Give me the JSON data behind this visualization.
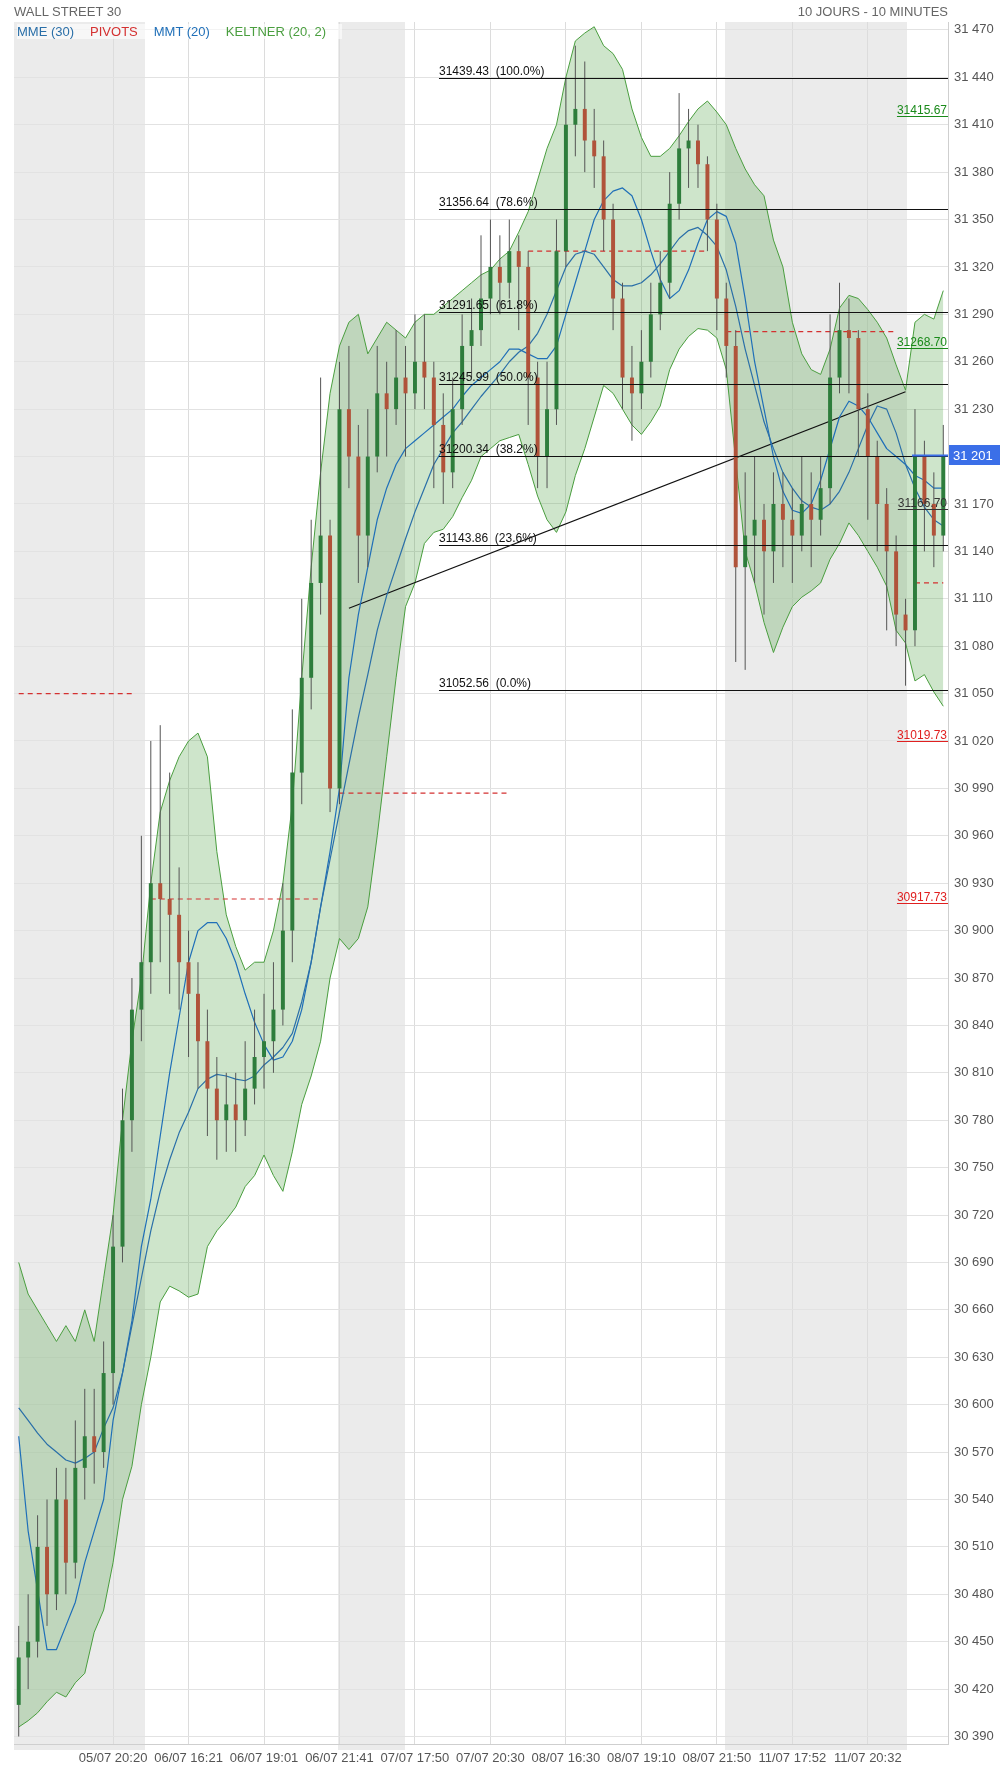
{
  "chart_data": {
    "type": "candlestick",
    "title": "WALL STREET 30",
    "subtitle": "10 JOURS - 10 MINUTES",
    "legend": "top left",
    "grid": true,
    "categories": [
      null,
      null,
      null,
      null,
      null,
      null,
      null,
      null,
      null,
      null,
      "05/07 20:20",
      null,
      null,
      null,
      null,
      null,
      null,
      null,
      "06/07 16:21",
      null,
      null,
      null,
      null,
      null,
      null,
      null,
      "06/07 19:01",
      null,
      null,
      null,
      null,
      null,
      null,
      null,
      "06/07 21:41",
      null,
      null,
      null,
      null,
      null,
      null,
      null,
      "07/07 17:50",
      null,
      null,
      null,
      null,
      null,
      null,
      null,
      "07/07 20:30",
      null,
      null,
      null,
      null,
      null,
      null,
      null,
      "08/07 16:30",
      null,
      null,
      null,
      null,
      null,
      null,
      null,
      "08/07 19:10",
      null,
      null,
      null,
      null,
      null,
      null,
      null,
      "08/07 21:50",
      null,
      null,
      null,
      null,
      null,
      null,
      null,
      "11/07 17:52",
      null,
      null,
      null,
      null,
      null,
      null,
      null,
      "11/07 20:32",
      null,
      null,
      null,
      null,
      null,
      null,
      null,
      null
    ],
    "ohlc": [
      [
        30410,
        30460,
        30390,
        30440
      ],
      [
        30440,
        30480,
        30420,
        30450
      ],
      [
        30450,
        30530,
        30440,
        30510
      ],
      [
        30510,
        30540,
        30460,
        30480
      ],
      [
        30480,
        30560,
        30470,
        30540
      ],
      [
        30540,
        30560,
        30480,
        30500
      ],
      [
        30500,
        30590,
        30490,
        30560
      ],
      [
        30560,
        30610,
        30540,
        30580
      ],
      [
        30580,
        30610,
        30550,
        30570
      ],
      [
        30570,
        30640,
        30560,
        30620
      ],
      [
        30620,
        30720,
        30600,
        30700
      ],
      [
        30700,
        30800,
        30690,
        30780
      ],
      [
        30780,
        30870,
        30760,
        30850
      ],
      [
        30850,
        30960,
        30830,
        30880
      ],
      [
        30880,
        31020,
        30860,
        30930
      ],
      [
        30930,
        31030,
        30880,
        30920
      ],
      [
        30920,
        31000,
        30860,
        30910
      ],
      [
        30910,
        30940,
        30850,
        30880
      ],
      [
        30880,
        30900,
        30820,
        30860
      ],
      [
        30860,
        30880,
        30800,
        30830
      ],
      [
        30830,
        30850,
        30770,
        30800
      ],
      [
        30800,
        30820,
        30755,
        30780
      ],
      [
        30780,
        30810,
        30760,
        30790
      ],
      [
        30790,
        30810,
        30760,
        30780
      ],
      [
        30780,
        30830,
        30770,
        30800
      ],
      [
        30800,
        30850,
        30790,
        30820
      ],
      [
        30820,
        30860,
        30800,
        30830
      ],
      [
        30830,
        30880,
        30810,
        30850
      ],
      [
        30850,
        30930,
        30840,
        30900
      ],
      [
        30900,
        31040,
        30880,
        31000
      ],
      [
        31000,
        31110,
        30980,
        31060
      ],
      [
        31060,
        31160,
        31040,
        31120
      ],
      [
        31120,
        31250,
        31100,
        31150
      ],
      [
        31150,
        31160,
        30975,
        30990
      ],
      [
        30990,
        31260,
        30980,
        31230
      ],
      [
        31230,
        31270,
        31180,
        31200
      ],
      [
        31200,
        31220,
        31120,
        31150
      ],
      [
        31150,
        31230,
        31130,
        31200
      ],
      [
        31200,
        31270,
        31190,
        31240
      ],
      [
        31240,
        31260,
        31200,
        31230
      ],
      [
        31230,
        31280,
        31220,
        31250
      ],
      [
        31250,
        31270,
        31200,
        31240
      ],
      [
        31240,
        31290,
        31230,
        31260
      ],
      [
        31260,
        31290,
        31230,
        31250
      ],
      [
        31250,
        31260,
        31180,
        31220
      ],
      [
        31220,
        31240,
        31170,
        31190
      ],
      [
        31190,
        31250,
        31180,
        31230
      ],
      [
        31230,
        31290,
        31220,
        31270
      ],
      [
        31270,
        31300,
        31250,
        31280
      ],
      [
        31280,
        31340,
        31270,
        31300
      ],
      [
        31300,
        31350,
        31290,
        31320
      ],
      [
        31320,
        31340,
        31290,
        31310
      ],
      [
        31310,
        31350,
        31300,
        31330
      ],
      [
        31330,
        31340,
        31280,
        31320
      ],
      [
        31320,
        31330,
        31220,
        31250
      ],
      [
        31250,
        31260,
        31180,
        31200
      ],
      [
        31200,
        31260,
        31180,
        31230
      ],
      [
        31230,
        31350,
        31220,
        31330
      ],
      [
        31330,
        31440,
        31320,
        31410
      ],
      [
        31410,
        31460,
        31390,
        31420
      ],
      [
        31420,
        31450,
        31380,
        31400
      ],
      [
        31400,
        31420,
        31370,
        31390
      ],
      [
        31390,
        31400,
        31330,
        31350
      ],
      [
        31350,
        31360,
        31280,
        31300
      ],
      [
        31300,
        31310,
        31230,
        31250
      ],
      [
        31250,
        31270,
        31210,
        31240
      ],
      [
        31240,
        31280,
        31230,
        31260
      ],
      [
        31260,
        31310,
        31250,
        31290
      ],
      [
        31290,
        31330,
        31280,
        31310
      ],
      [
        31310,
        31380,
        31300,
        31360
      ],
      [
        31360,
        31430,
        31350,
        31395
      ],
      [
        31395,
        31420,
        31370,
        31400
      ],
      [
        31400,
        31410,
        31370,
        31385
      ],
      [
        31385,
        31390,
        31330,
        31350
      ],
      [
        31350,
        31360,
        31280,
        31300
      ],
      [
        31300,
        31310,
        31250,
        31270
      ],
      [
        31270,
        31280,
        31070,
        31130
      ],
      [
        31130,
        31190,
        31065,
        31150
      ],
      [
        31150,
        31200,
        31120,
        31160
      ],
      [
        31160,
        31170,
        31100,
        31140
      ],
      [
        31140,
        31190,
        31120,
        31170
      ],
      [
        31170,
        31190,
        31130,
        31160
      ],
      [
        31160,
        31180,
        31120,
        31150
      ],
      [
        31150,
        31200,
        31140,
        31170
      ],
      [
        31170,
        31190,
        31130,
        31160
      ],
      [
        31160,
        31200,
        31150,
        31180
      ],
      [
        31180,
        31290,
        31170,
        31250
      ],
      [
        31250,
        31310,
        31240,
        31280
      ],
      [
        31280,
        31300,
        31240,
        31275
      ],
      [
        31275,
        31280,
        31200,
        31230
      ],
      [
        31230,
        31240,
        31160,
        31200
      ],
      [
        31200,
        31210,
        31140,
        31170
      ],
      [
        31170,
        31180,
        31090,
        31140
      ],
      [
        31140,
        31150,
        31080,
        31100
      ],
      [
        31100,
        31110,
        31055,
        31090
      ],
      [
        31090,
        31230,
        31080,
        31200
      ],
      [
        31200,
        31210,
        31140,
        31170
      ],
      [
        31170,
        31190,
        31130,
        31150
      ],
      [
        31150,
        31220,
        31140,
        31201
      ]
    ],
    "colors": [
      "#2e7d3c",
      "#2e7d3c",
      "#2e7d3c",
      "#b0533a",
      "#2e7d3c",
      "#b0533a",
      "#2e7d3c",
      "#2e7d3c",
      "#b0533a",
      "#2e7d3c",
      "#2e7d3c",
      "#2e7d3c",
      "#2e7d3c",
      "#2e7d3c",
      "#2e7d3c",
      "#b0533a",
      "#b0533a",
      "#b0533a",
      "#b0533a",
      "#b0533a",
      "#b0533a",
      "#b0533a",
      "#2e7d3c",
      "#b0533a",
      "#2e7d3c",
      "#2e7d3c",
      "#2e7d3c",
      "#2e7d3c",
      "#2e7d3c",
      "#2e7d3c",
      "#2e7d3c",
      "#2e7d3c",
      "#2e7d3c",
      "#b0533a",
      "#2e7d3c",
      "#b0533a",
      "#b0533a",
      "#2e7d3c",
      "#2e7d3c",
      "#b0533a",
      "#2e7d3c",
      "#b0533a",
      "#2e7d3c",
      "#b0533a",
      "#b0533a",
      "#b0533a",
      "#2e7d3c",
      "#2e7d3c",
      "#2e7d3c",
      "#2e7d3c",
      "#2e7d3c",
      "#b0533a",
      "#2e7d3c",
      "#b0533a",
      "#b0533a",
      "#b0533a",
      "#2e7d3c",
      "#2e7d3c",
      "#2e7d3c",
      "#2e7d3c",
      "#b0533a",
      "#b0533a",
      "#b0533a",
      "#b0533a",
      "#b0533a",
      "#b0533a",
      "#2e7d3c",
      "#2e7d3c",
      "#2e7d3c",
      "#2e7d3c",
      "#2e7d3c",
      "#2e7d3c",
      "#b0533a",
      "#b0533a",
      "#b0533a",
      "#b0533a",
      "#b0533a",
      "#2e7d3c",
      "#2e7d3c",
      "#b0533a",
      "#2e7d3c",
      "#b0533a",
      "#b0533a",
      "#2e7d3c",
      "#b0533a",
      "#2e7d3c",
      "#2e7d3c",
      "#2e7d3c",
      "#b0533a",
      "#b0533a",
      "#b0533a",
      "#b0533a",
      "#b0533a",
      "#b0533a",
      "#b0533a",
      "#2e7d3c",
      "#b0533a",
      "#b0533a",
      "#2e7d3c"
    ],
    "series": [
      {
        "name": "MME (30)",
        "type": "line",
        "color": "#2a6fa8",
        "values": [
          30598,
          30590,
          30582,
          30575,
          30570,
          30565,
          30563,
          30566,
          30570,
          30585,
          30598,
          30620,
          30650,
          30680,
          30710,
          30735,
          30755,
          30772,
          30785,
          30800,
          30806,
          30809,
          30808,
          30806,
          30805,
          30808,
          30815,
          30820,
          30826,
          30835,
          30855,
          30880,
          30915,
          30945,
          30975,
          31005,
          31035,
          31062,
          31090,
          31112,
          31130,
          31148,
          31165,
          31180,
          31195,
          31205,
          31215,
          31222,
          31230,
          31238,
          31245,
          31252,
          31260,
          31266,
          31270,
          31278,
          31290,
          null,
          31320,
          31328,
          31330,
          31328,
          31320,
          31312,
          31308,
          31308,
          31310,
          31315,
          31322,
          31330,
          31338,
          31343,
          31345,
          31340,
          31333,
          31318,
          31295,
          31268,
          31245,
          31222,
          31205,
          31190,
          31180,
          31172,
          31168,
          31166,
          31170,
          31178,
          31190,
          31205,
          31220,
          31232,
          31230,
          31215,
          31195,
          31180,
          31168,
          31160,
          31156
        ]
      },
      {
        "name": "PIVOTS",
        "type": "line",
        "line_style": "dashed",
        "color": "#d43030",
        "values": [
          31050,
          31050,
          31050,
          31050,
          31050,
          31050,
          31050,
          31050,
          31050,
          31050,
          31050,
          31050,
          31050,
          null,
          30920,
          30920,
          30920,
          30920,
          30920,
          30920,
          30920,
          30920,
          30920,
          30920,
          30920,
          30920,
          30920,
          30920,
          30920,
          30920,
          30920,
          30920,
          30920,
          null,
          30987,
          30987,
          30987,
          30987,
          30987,
          30987,
          30987,
          30987,
          30987,
          30987,
          30987,
          30987,
          30987,
          30987,
          30987,
          30987,
          30987,
          30987,
          30987,
          null,
          31330,
          31330,
          31330,
          31330,
          31330,
          31330,
          31330,
          31330,
          31330,
          31330,
          31330,
          31330,
          31330,
          31330,
          31330,
          31330,
          31330,
          31330,
          31330,
          31330,
          null,
          31279,
          31279,
          31279,
          31279,
          31279,
          31279,
          31279,
          31279,
          31279,
          31279,
          31279,
          31279,
          31279,
          31279,
          31279,
          31279,
          31279,
          31279,
          31279,
          null,
          31120,
          31120,
          31120,
          31120
        ]
      },
      {
        "name": "MMT (20)",
        "type": "line",
        "color": "#1f6fb8",
        "values": [
          30580,
          30520,
          null,
          30445,
          30445,
          30460,
          30475,
          30500,
          30520,
          30540,
          30590,
          30620,
          30653,
          30700,
          30730,
          30770,
          30810,
          30845,
          30880,
          30900,
          30905,
          30905,
          30895,
          30880,
          30860,
          30842,
          30828,
          30818,
          30820,
          30830,
          30850,
          30880,
          30915,
          30950,
          30990,
          31060,
          31100,
          31130,
          31160,
          31180,
          31195,
          31205,
          31210,
          31215,
          31220,
          31225,
          31230,
          31238,
          31245,
          31250,
          31255,
          31260,
          31268,
          31268,
          31265,
          31262,
          31262,
          31270,
          31290,
          31310,
          31330,
          31350,
          31362,
          31368,
          31370,
          31365,
          31350,
          31330,
          31312,
          31300,
          31305,
          31318,
          31335,
          31350,
          31355,
          31352,
          31335,
          31300,
          31260,
          31230,
          31200,
          31178,
          31166,
          31164,
          31170,
          31185,
          null,
          31225,
          31235,
          31232,
          31225,
          31215,
          31205,
          31200,
          31195,
          31188,
          31185,
          31180,
          31180
        ]
      },
      {
        "name": "KELTNER (20, 2)",
        "type": "area",
        "color": "#4a9e3f",
        "values": [
          30690,
          30670,
          30660,
          30650,
          30640,
          30650,
          30640,
          30660,
          30640,
          30680,
          30720,
          30780,
          30830,
          30870,
          30930,
          30975,
          30995,
          31010,
          31020,
          31025,
          31010,
          30950,
          30910,
          30890,
          30875,
          30880,
          30880,
          30900,
          30930,
          30980,
          31060,
          31130,
          31190,
          31240,
          31270,
          31285,
          31290,
          31265,
          31275,
          31285,
          31280,
          31275,
          31285,
          31290,
          31290,
          31295,
          31300,
          31305,
          31310,
          31315,
          31318,
          31325,
          31330,
          31342,
          31355,
          31375,
          31395,
          31410,
          31440,
          31463,
          31468,
          31472,
          31460,
          31455,
          31445,
          31420,
          31402,
          31390,
          31390,
          31395,
          31403,
          31412,
          31420,
          31425,
          31418,
          31410,
          31395,
          31382,
          31372,
          31365,
          31337,
          31320,
          31285,
          31265,
          31255,
          31252,
          31268,
          31294,
          31302,
          31300,
          31293,
          31285,
          31275,
          31258,
          31242,
          31285,
          31290,
          31287,
          31305
        ]
      },
      {
        "type": "line",
        "color": "#4a9e3f",
        "values": [
          30396,
          30400,
          30405,
          30412,
          30418,
          30415,
          30424,
          30430,
          30456,
          30470,
          30500,
          30540,
          30561,
          30600,
          30630,
          30665,
          30675,
          30672,
          30668,
          30670,
          30700,
          30710,
          30717,
          30725,
          30738,
          30745,
          30758,
          30745,
          30735,
          30760,
          30790,
          30808,
          30830,
          30870,
          30895,
          30888,
          30895,
          30915,
          30960,
          31010,
          31060,
          31105,
          31120,
          31145,
          31152,
          31154,
          31162,
          31174,
          31185,
          31200,
          31205,
          31210,
          31212,
          31214,
          31195,
          31175,
          31160,
          31152,
          31165,
          31188,
          31205,
          31225,
          31245,
          31240,
          31230,
          31220,
          31214,
          31222,
          31232,
          31255,
          31268,
          31276,
          31281,
          31280,
          31275,
          31255,
          null,
          31140,
          31120,
          31095,
          31076,
          31092,
          31105,
          31111,
          31115,
          31120,
          31135,
          31145,
          31158,
          31150,
          31140,
          31130,
          31118,
          31090,
          31082,
          31058,
          31062,
          31051,
          31042
        ]
      },
      {
        "type": "line",
        "color": "#111111",
        "values": [
          null,
          null,
          null,
          null,
          null,
          null,
          null,
          null,
          null,
          null,
          null,
          null,
          null,
          null,
          null,
          null,
          null,
          null,
          null,
          null,
          null,
          null,
          null,
          null,
          null,
          null,
          null,
          null,
          null,
          null,
          null,
          null,
          null,
          null,
          null,
          31104,
          null,
          null,
          null,
          null,
          null,
          null,
          null,
          null,
          null,
          null,
          null,
          null,
          null,
          null,
          null,
          null,
          null,
          null,
          null,
          null,
          null,
          null,
          null,
          null,
          null,
          null,
          null,
          null,
          null,
          null,
          null,
          null,
          null,
          null,
          null,
          null,
          null,
          null,
          null,
          null,
          null,
          null,
          null,
          null,
          null,
          null,
          null,
          null,
          null,
          null,
          null,
          null,
          null,
          null,
          null,
          null,
          null,
          null,
          31241,
          null,
          null,
          null,
          null
        ]
      }
    ],
    "ylim": [
      30385,
      31475
    ],
    "yticks": [
      {
        "value": 30390,
        "label": "30 390"
      },
      {
        "value": 30420,
        "label": "30 420"
      },
      {
        "value": 30450,
        "label": "30 450"
      },
      {
        "value": 30480,
        "label": "30 480"
      },
      {
        "value": 30510,
        "label": "30 510"
      },
      {
        "value": 30540,
        "label": "30 540"
      },
      {
        "value": 30570,
        "label": "30 570"
      },
      {
        "value": 30600,
        "label": "30 600"
      },
      {
        "value": 30630,
        "label": "30 630"
      },
      {
        "value": 30660,
        "label": "30 660"
      },
      {
        "value": 30690,
        "label": "30 690"
      },
      {
        "value": 30720,
        "label": "30 720"
      },
      {
        "value": 30750,
        "label": "30 750"
      },
      {
        "value": 30780,
        "label": "30 780"
      },
      {
        "value": 30810,
        "label": "30 810"
      },
      {
        "value": 30840,
        "label": "30 840"
      },
      {
        "value": 30870,
        "label": "30 870"
      },
      {
        "value": 30900,
        "label": "30 900"
      },
      {
        "value": 30930,
        "label": "30 930"
      },
      {
        "value": 30960,
        "label": "30 960"
      },
      {
        "value": 30990,
        "label": "30 990"
      },
      {
        "value": 31020,
        "label": "31 020"
      },
      {
        "value": 31050,
        "label": "31 050"
      },
      {
        "value": 31080,
        "label": "31 080"
      },
      {
        "value": 31110,
        "label": "31 110"
      },
      {
        "value": 31140,
        "label": "31 140"
      },
      {
        "value": 31170,
        "label": "31 170"
      },
      {
        "value": 31200,
        "label": null
      },
      {
        "value": 31230,
        "label": "31 230"
      },
      {
        "value": 31260,
        "label": "31 260"
      },
      {
        "value": 31290,
        "label": "31 290"
      },
      {
        "value": 31320,
        "label": "31 320"
      },
      {
        "value": 31350,
        "label": "31 350"
      },
      {
        "value": 31380,
        "label": "31 380"
      },
      {
        "value": 31410,
        "label": "31 410"
      },
      {
        "value": 31440,
        "label": "31 440"
      },
      {
        "value": 31470,
        "label": "31 470"
      }
    ],
    "ref_lines": [
      {
        "axis": "y",
        "value": 31439.43,
        "label": "31439.43  (100.0%)"
      },
      {
        "axis": "y",
        "value": 31356.64,
        "label": "31356.64  (78.6%)"
      },
      {
        "axis": "y",
        "value": 31291.65,
        "label": "31291.65  (61.8%)"
      },
      {
        "axis": "y",
        "value": 31245.99,
        "label": "31245.99  (50.0%)"
      },
      {
        "axis": "y",
        "value": 31200.34,
        "label": "31200.34  (38.2%)"
      },
      {
        "axis": "y",
        "value": 31143.86,
        "label": "31143.86  (23.6%)"
      },
      {
        "axis": "y",
        "value": 31052.56,
        "label": "31052.56  (0.0%)"
      },
      {
        "axis": "y",
        "value": 31415.67,
        "label": "31415.67",
        "color": "#1a8a1a"
      },
      {
        "axis": "y",
        "value": 31268.7,
        "label": "31268.70",
        "color": "#1a8a1a"
      },
      {
        "axis": "y",
        "value": 31166.7,
        "label": "31166.70",
        "color": "#333333"
      },
      {
        "axis": "y",
        "value": 31019.73,
        "label": "31019.73",
        "color": "#e02020"
      },
      {
        "axis": "y",
        "value": 30917.73,
        "label": "30917.73",
        "color": "#e02020"
      },
      {
        "axis": "y",
        "value": 31201,
        "label": "31 201",
        "color": "#3b6fe8",
        "line_style": "solid"
      }
    ]
  }
}
